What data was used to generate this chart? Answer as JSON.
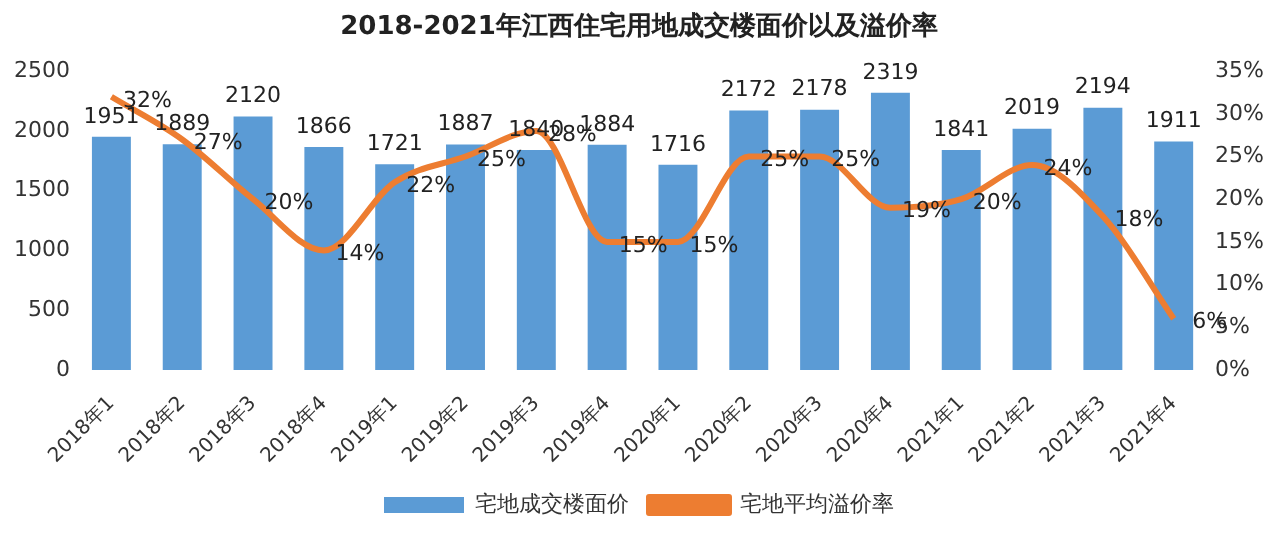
{
  "chart_data": {
    "type": "bar",
    "title": "2018-2021年江西住宅用地成交楼面价以及溢价率",
    "categories": [
      "2018年1",
      "2018年2",
      "2018年3",
      "2018年4",
      "2019年1",
      "2019年2",
      "2019年3",
      "2019年4",
      "2020年1",
      "2020年2",
      "2020年3",
      "2020年4",
      "2021年1",
      "2021年2",
      "2021年3",
      "2021年4"
    ],
    "series": [
      {
        "name": "宅地成交楼面价",
        "type": "bar",
        "color": "#5b9bd5",
        "values": [
          1951,
          1889,
          2120,
          1866,
          1721,
          1887,
          1840,
          1884,
          1716,
          2172,
          2178,
          2319,
          1841,
          2019,
          2194,
          1911
        ]
      },
      {
        "name": "宅地平均溢价率",
        "type": "line",
        "axis": "y2",
        "color": "#ed7d31",
        "values": [
          32,
          27,
          20,
          14,
          22,
          25,
          28,
          15,
          15,
          25,
          25,
          19,
          20,
          24,
          18,
          6
        ],
        "value_labels": [
          "32%",
          "27%",
          "20%",
          "14%",
          "22%",
          "25%",
          "28%",
          "15%",
          "15%",
          "25%",
          "25%",
          "19%",
          "20%",
          "24%",
          "18%",
          "6%"
        ]
      }
    ],
    "ylim": [
      0,
      2500
    ],
    "yticks": [
      0,
      500,
      1000,
      1500,
      2000,
      2500
    ],
    "y2lim": [
      0,
      35
    ],
    "y2ticks": [
      {
        "value": 0,
        "label": "0%"
      },
      {
        "value": 5,
        "label": "5%"
      },
      {
        "value": 10,
        "label": "10%"
      },
      {
        "value": 15,
        "label": "15%"
      },
      {
        "value": 20,
        "label": "20%"
      },
      {
        "value": 25,
        "label": "25%"
      },
      {
        "value": 30,
        "label": "30%"
      },
      {
        "value": 35,
        "label": "35%"
      }
    ],
    "data_labels": true,
    "legend": "bottom",
    "marker": "none"
  }
}
